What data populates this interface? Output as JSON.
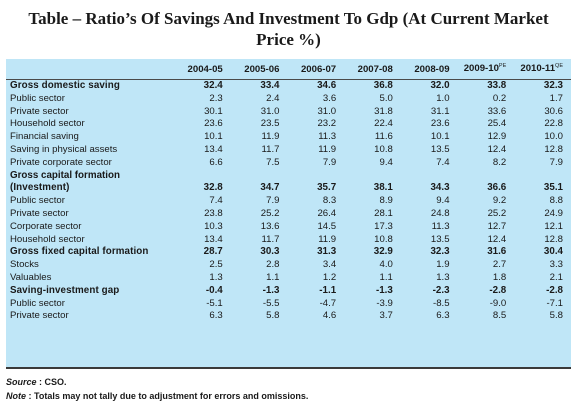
{
  "title_line1": "Table – Ratio’s Of Savings And Investment To Gdp (At Current Market",
  "title_line2": "Price %)",
  "columns": [
    "2004-05",
    "2005-06",
    "2006-07",
    "2007-08",
    "2008-09",
    "2009-10",
    "2010-11"
  ],
  "column_superscripts": {
    "5": "PE",
    "6": "QE"
  },
  "rows": [
    {
      "label": "Gross domestic saving",
      "values": [
        "32.4",
        "33.4",
        "34.6",
        "36.8",
        "32.0",
        "33.8",
        "32.3"
      ],
      "style": "head"
    },
    {
      "label": "Public sector",
      "values": [
        "2.3",
        "2.4",
        "3.6",
        "5.0",
        "1.0",
        "0.2",
        "1.7"
      ]
    },
    {
      "label": "Private sector",
      "values": [
        "30.1",
        "31.0",
        "31.0",
        "31.8",
        "31.1",
        "33.6",
        "30.6"
      ]
    },
    {
      "label": "Household sector",
      "values": [
        "23.6",
        "23.5",
        "23.2",
        "22.4",
        "23.6",
        "25.4",
        "22.8"
      ]
    },
    {
      "label": "Financial saving",
      "values": [
        "10.1",
        "11.9",
        "11.3",
        "11.6",
        "10.1",
        "12.9",
        "10.0"
      ]
    },
    {
      "label": "Saving in physical assets",
      "values": [
        "13.4",
        "11.7",
        "11.9",
        "10.8",
        "13.5",
        "12.4",
        "12.8"
      ]
    },
    {
      "label": "Private corporate sector",
      "values": [
        "6.6",
        "7.5",
        "7.9",
        "9.4",
        "7.4",
        "8.2",
        "7.9"
      ]
    },
    {
      "label": "Gross capital formation",
      "values": [
        "",
        "",
        "",
        "",
        "",
        "",
        ""
      ],
      "style": "subhead"
    },
    {
      "label": "(Investment)",
      "values": [
        "32.8",
        "34.7",
        "35.7",
        "38.1",
        "34.3",
        "36.6",
        "35.1"
      ],
      "style": "head"
    },
    {
      "label": "Public sector",
      "values": [
        "7.4",
        "7.9",
        "8.3",
        "8.9",
        "9.4",
        "9.2",
        "8.8"
      ]
    },
    {
      "label": "Private sector",
      "values": [
        "23.8",
        "25.2",
        "26.4",
        "28.1",
        "24.8",
        "25.2",
        "24.9"
      ]
    },
    {
      "label": "Corporate sector",
      "values": [
        "10.3",
        "13.6",
        "14.5",
        "17.3",
        "11.3",
        "12.7",
        "12.1"
      ]
    },
    {
      "label": "Household sector",
      "values": [
        "13.4",
        "11.7",
        "11.9",
        "10.8",
        "13.5",
        "12.4",
        "12.8"
      ]
    },
    {
      "label": "Gross fixed capital formation",
      "values": [
        "28.7",
        "30.3",
        "31.3",
        "32.9",
        "32.3",
        "31.6",
        "30.4"
      ],
      "style": "head"
    },
    {
      "label": "Stocks",
      "values": [
        "2.5",
        "2.8",
        "3.4",
        "4.0",
        "1.9",
        "2.7",
        "3.3"
      ]
    },
    {
      "label": "Valuables",
      "values": [
        "1.3",
        "1.1",
        "1.2",
        "1.1",
        "1.3",
        "1.8",
        "2.1"
      ]
    },
    {
      "label": "Saving-investment gap",
      "values": [
        "-0.4",
        "-1.3",
        "-1.1",
        "-1.3",
        "-2.3",
        "-2.8",
        "-2.8"
      ],
      "style": "head"
    },
    {
      "label": "Public sector",
      "values": [
        "-5.1",
        "-5.5",
        "-4.7",
        "-3.9",
        "-8.5",
        "-9.0",
        "-7.1"
      ]
    },
    {
      "label": "Private sector",
      "values": [
        "6.3",
        "5.8",
        "4.6",
        "3.7",
        "6.3",
        "8.5",
        "5.8"
      ]
    }
  ],
  "source_label": "Source",
  "source_text": ": CSO.",
  "note_label": "Note",
  "note_text": ": Totals may not tally due to adjustment for errors and omissions."
}
